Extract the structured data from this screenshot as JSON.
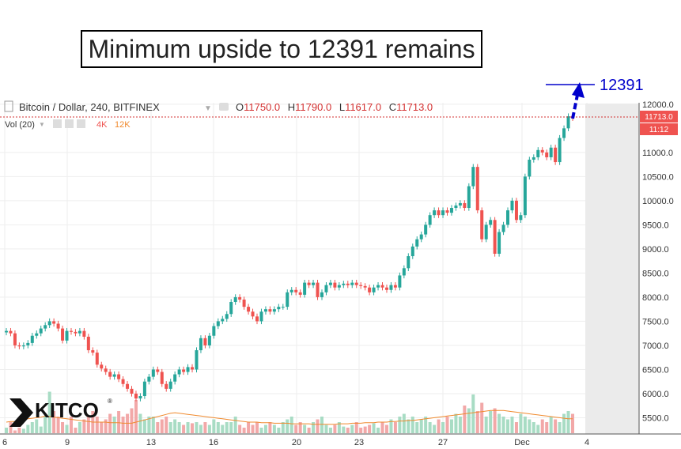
{
  "annotation": {
    "headline": "Minimum upside to 12391 remains",
    "target_label": "12391"
  },
  "header": {
    "symbol": "Bitcoin / Dollar, 240, BITFINEX",
    "ohlc": [
      {
        "key": "O",
        "value": "11750.0"
      },
      {
        "key": "H",
        "value": "11790.0"
      },
      {
        "key": "L",
        "value": "11617.0"
      },
      {
        "key": "C",
        "value": "11713.0"
      }
    ],
    "volume_label": "Vol (20)",
    "volume_value": "4K",
    "volume_ma_value": "12K"
  },
  "price_badge": {
    "price": "11713.0",
    "time": "11:12"
  },
  "logo": {
    "text": "KITCO"
  },
  "colors": {
    "up": "#26a69a",
    "down": "#ef5350",
    "volume_ma": "#f08a2e",
    "annotation": "#0000cc",
    "price_line": "#d32f2f"
  },
  "chart_data": {
    "type": "candlestick",
    "title": "Bitcoin / Dollar, 240, BITFINEX",
    "x_ticks": [
      "6",
      "9",
      "13",
      "16",
      "20",
      "23",
      "27",
      "Dec",
      "4"
    ],
    "y_ticks": [
      5500,
      6000,
      6500,
      7000,
      7500,
      8000,
      8500,
      9000,
      9500,
      10000,
      10500,
      11000,
      12000
    ],
    "ylim": [
      5180,
      12030
    ],
    "last_price": 11713.0,
    "target": 12391,
    "series": [
      {
        "name": "price_close_4h",
        "values": [
          7300,
          7250,
          7000,
          6980,
          7000,
          7050,
          7200,
          7250,
          7350,
          7420,
          7500,
          7450,
          7350,
          7100,
          7300,
          7280,
          7250,
          7300,
          7180,
          6900,
          6850,
          6600,
          6520,
          6450,
          6350,
          6400,
          6300,
          6200,
          6100,
          6000,
          5900,
          5950,
          6250,
          6350,
          6500,
          6450,
          6200,
          6100,
          6250,
          6400,
          6500,
          6450,
          6550,
          6500,
          6900,
          7150,
          7000,
          7200,
          7400,
          7500,
          7550,
          7650,
          7900,
          8000,
          7950,
          7800,
          7700,
          7600,
          7500,
          7700,
          7750,
          7700,
          7750,
          7800,
          7800,
          8100,
          8150,
          8100,
          8050,
          8300,
          8250,
          8300,
          8000,
          8100,
          8250,
          8300,
          8200,
          8250,
          8280,
          8250,
          8300,
          8250,
          8230,
          8200,
          8100,
          8200,
          8250,
          8200,
          8150,
          8250,
          8200,
          8450,
          8600,
          8850,
          9050,
          9200,
          9300,
          9500,
          9700,
          9800,
          9700,
          9800,
          9750,
          9850,
          9900,
          9950,
          9850,
          10300,
          10700,
          9800,
          9200,
          9500,
          9600,
          8900,
          9350,
          9500,
          9800,
          10000,
          9600,
          9700,
          10500,
          10850,
          10900,
          11050,
          11000,
          10900,
          11100,
          10800,
          11300,
          11500,
          11750,
          11713
        ]
      },
      {
        "name": "volume",
        "values": [
          0.1,
          0.2,
          0.05,
          0.1,
          0.08,
          0.15,
          0.2,
          0.25,
          0.12,
          0.3,
          0.75,
          0.4,
          0.3,
          0.2,
          0.15,
          0.3,
          0.1,
          0.2,
          0.25,
          0.3,
          0.4,
          0.3,
          0.2,
          0.25,
          0.35,
          0.3,
          0.4,
          0.3,
          0.35,
          0.45,
          0.6,
          0.35,
          0.25,
          0.3,
          0.3,
          0.2,
          0.25,
          0.3,
          0.2,
          0.25,
          0.2,
          0.15,
          0.2,
          0.18,
          0.2,
          0.15,
          0.2,
          0.15,
          0.25,
          0.2,
          0.15,
          0.2,
          0.2,
          0.3,
          0.15,
          0.1,
          0.2,
          0.15,
          0.2,
          0.1,
          0.15,
          0.2,
          0.15,
          0.1,
          0.2,
          0.25,
          0.3,
          0.15,
          0.2,
          0.15,
          0.1,
          0.2,
          0.25,
          0.3,
          0.15,
          0.1,
          0.15,
          0.2,
          0.12,
          0.1,
          0.15,
          0.2,
          0.1,
          0.12,
          0.15,
          0.18,
          0.1,
          0.2,
          0.15,
          0.25,
          0.2,
          0.3,
          0.35,
          0.25,
          0.3,
          0.2,
          0.25,
          0.3,
          0.2,
          0.15,
          0.25,
          0.2,
          0.3,
          0.25,
          0.35,
          0.3,
          0.5,
          0.45,
          0.7,
          0.4,
          0.55,
          0.3,
          0.4,
          0.45,
          0.35,
          0.3,
          0.25,
          0.3,
          0.2,
          0.35,
          0.3,
          0.25,
          0.2,
          0.15,
          0.25,
          0.2,
          0.3,
          0.25,
          0.2,
          0.35,
          0.4,
          0.35
        ]
      },
      {
        "name": "volume_ma",
        "values": [
          0.2,
          0.21,
          0.21,
          0.22,
          0.24,
          0.26,
          0.27,
          0.28,
          0.29,
          0.31,
          0.3,
          0.29,
          0.28,
          0.27,
          0.26,
          0.25,
          0.24,
          0.23,
          0.22,
          0.21,
          0.2,
          0.2,
          0.2,
          0.2,
          0.19,
          0.19,
          0.19,
          0.18,
          0.18,
          0.18,
          0.2,
          0.22,
          0.24,
          0.26,
          0.28,
          0.3,
          0.32,
          0.34,
          0.36,
          0.37,
          0.36,
          0.35,
          0.34,
          0.33,
          0.32,
          0.31,
          0.3,
          0.29,
          0.28,
          0.27,
          0.26,
          0.25,
          0.24,
          0.23,
          0.22,
          0.21,
          0.2,
          0.2,
          0.2,
          0.19,
          0.19,
          0.19,
          0.18,
          0.18,
          0.18,
          0.18,
          0.17,
          0.17,
          0.17,
          0.17,
          0.17,
          0.16,
          0.16,
          0.16,
          0.16,
          0.16,
          0.16,
          0.17,
          0.17,
          0.17,
          0.18,
          0.18,
          0.18,
          0.19,
          0.19,
          0.19,
          0.2,
          0.2,
          0.2,
          0.21,
          0.21,
          0.22,
          0.22,
          0.23,
          0.23,
          0.24,
          0.25,
          0.26,
          0.27,
          0.28,
          0.29,
          0.3,
          0.31,
          0.32,
          0.33,
          0.34,
          0.35,
          0.36,
          0.37,
          0.38,
          0.39,
          0.4,
          0.41,
          0.41,
          0.41,
          0.41,
          0.4,
          0.39,
          0.38,
          0.37,
          0.36,
          0.35,
          0.34,
          0.33,
          0.32,
          0.31,
          0.3,
          0.29,
          0.28,
          0.27,
          0.26,
          0.26
        ]
      }
    ]
  }
}
